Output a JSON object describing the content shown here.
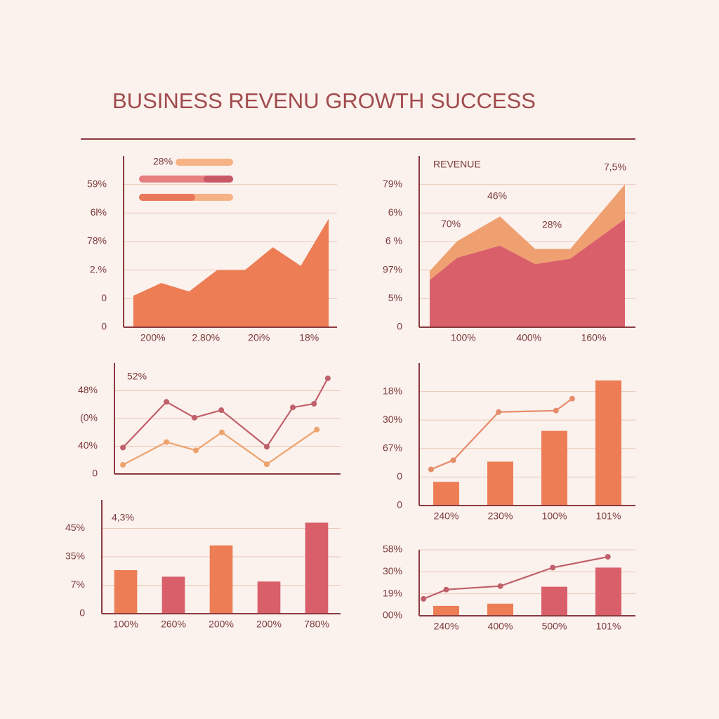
{
  "title": "BUSINESS REVENU GROWTH SUCCESS",
  "chart_data": [
    {
      "type": "area",
      "annotations": [
        "28%"
      ],
      "xlim": [
        -0.35,
        7.3
      ],
      "ylim": [
        0,
        6
      ],
      "x": [
        0,
        1,
        2,
        3,
        4,
        5,
        6,
        7
      ],
      "series": [
        {
          "color": "#ec7d55",
          "values": [
            1.1,
            1.55,
            1.25,
            2.0,
            2.0,
            2.8,
            2.15,
            3.8
          ]
        }
      ],
      "yticks": [
        0,
        {
          "value": 1,
          "label": "0"
        },
        {
          "value": 2,
          "label": "2.%"
        },
        {
          "value": 3,
          "label": "78%"
        },
        {
          "value": 4,
          "label": "6l%"
        },
        {
          "value": 5,
          "label": "59%"
        }
      ],
      "xticks": [
        {
          "value": 0.7,
          "label": "200%"
        },
        {
          "value": 2.6,
          "label": "2.80%"
        },
        {
          "value": 4.5,
          "label": "20i%"
        },
        {
          "value": 6.3,
          "label": "18%"
        }
      ]
    },
    {
      "type": "area",
      "stacked": true,
      "annotations": [
        "REVENUE",
        "7,5%",
        "46%",
        "70%",
        "28%"
      ],
      "xlim": [
        -0.27,
        5.27
      ],
      "ylim": [
        0,
        6
      ],
      "x": [
        0,
        0.7,
        1.8,
        2.7,
        3.6,
        5
      ],
      "series": [
        {
          "color": "#d95f6a",
          "values": [
            1.65,
            2.43,
            2.86,
            2.21,
            2.4,
            3.79
          ]
        },
        {
          "color": "#efa070",
          "values": [
            0.32,
            0.58,
            1.02,
            0.53,
            0.34,
            1.21
          ]
        }
      ],
      "yticks": [
        0,
        {
          "value": 1,
          "label": "5%"
        },
        {
          "value": 2,
          "label": "97%"
        },
        {
          "value": 3,
          "label": "6 %"
        },
        {
          "value": 4,
          "label": "6%"
        },
        {
          "value": 5,
          "label": "79%"
        }
      ],
      "xticks": [
        {
          "value": 0.86,
          "label": "100%"
        },
        {
          "value": 2.54,
          "label": "400%"
        },
        {
          "value": 4.2,
          "label": "160%"
        }
      ]
    },
    {
      "type": "line",
      "annotations": [
        "52%"
      ],
      "xlim": [
        0,
        8
      ],
      "ylim": [
        0,
        4
      ],
      "series": [
        {
          "color": "#c0606a",
          "x": [
            0.3,
            1.84,
            2.83,
            3.78,
            5.39,
            6.31,
            7.06,
            7.55
          ],
          "values": [
            0.95,
            2.6,
            2.03,
            2.3,
            0.98,
            2.4,
            2.53,
            3.45
          ]
        },
        {
          "color": "#eda36d",
          "x": [
            0.3,
            1.84,
            2.88,
            3.8,
            5.39,
            7.16
          ],
          "values": [
            0.33,
            1.15,
            0.85,
            1.5,
            0.35,
            1.6
          ]
        }
      ],
      "yticks": [
        0,
        {
          "value": 1,
          "label": "40%"
        },
        {
          "value": 2,
          "label": "(0%"
        },
        {
          "value": 3,
          "label": "48%"
        }
      ]
    },
    {
      "type": "bar",
      "annotations": [],
      "xlim": [
        -0.5,
        3.5
      ],
      "ylim": [
        0,
        5
      ],
      "categories": [
        "240%",
        "230%",
        "100%",
        "101%"
      ],
      "series": [
        {
          "color": "#ec7d55",
          "values": [
            0.83,
            1.54,
            2.62,
            4.39
          ]
        },
        {
          "type": "line",
          "color": "#e58c6a",
          "x": [
            -0.28,
            0.13,
            0.97,
            2.03,
            2.33
          ],
          "values": [
            1.27,
            1.59,
            3.28,
            3.33,
            3.75
          ]
        }
      ],
      "yticks": [
        0,
        {
          "value": 1,
          "label": "0"
        },
        {
          "value": 2,
          "label": "67%"
        },
        {
          "value": 3,
          "label": "30%"
        },
        {
          "value": 4,
          "label": "18%"
        }
      ]
    },
    {
      "type": "bar",
      "annotations": [
        "4,3%"
      ],
      "xlim": [
        -0.5,
        4.5
      ],
      "ylim": [
        0,
        4
      ],
      "categories": [
        "100%",
        "260%",
        "200%",
        "200%",
        "780%"
      ],
      "series": [
        {
          "colors": [
            "#ec7d55",
            "#d95f6a",
            "#ec7d55",
            "#d95f6a",
            "#d95f6a"
          ],
          "values": [
            1.53,
            1.3,
            2.4,
            1.13,
            3.2
          ]
        }
      ],
      "yticks": [
        0,
        {
          "value": 1,
          "label": "7%"
        },
        {
          "value": 2,
          "label": "35%"
        },
        {
          "value": 3,
          "label": "45%"
        }
      ]
    },
    {
      "type": "bar",
      "annotations": [],
      "xlim": [
        -0.5,
        3.5
      ],
      "ylim": [
        0,
        3
      ],
      "categories": [
        "240%",
        "400%",
        "500%",
        "101%"
      ],
      "series": [
        {
          "colors": [
            "#ec7d55",
            "#ec7d55",
            "#d95f6a",
            "#d95f6a"
          ],
          "values": [
            0.45,
            0.55,
            1.32,
            2.19
          ]
        },
        {
          "type": "line",
          "color": "#c0606a",
          "x": [
            -0.42,
            0.0,
            1.0,
            1.97,
            2.99
          ],
          "values": [
            0.77,
            1.19,
            1.35,
            2.19,
            2.68
          ]
        }
      ],
      "yticks": [
        {
          "value": 0,
          "label": "00%"
        },
        {
          "value": 1,
          "label": "19%"
        },
        {
          "value": 2,
          "label": "30%"
        },
        {
          "value": 3,
          "label": "58%"
        }
      ]
    }
  ]
}
